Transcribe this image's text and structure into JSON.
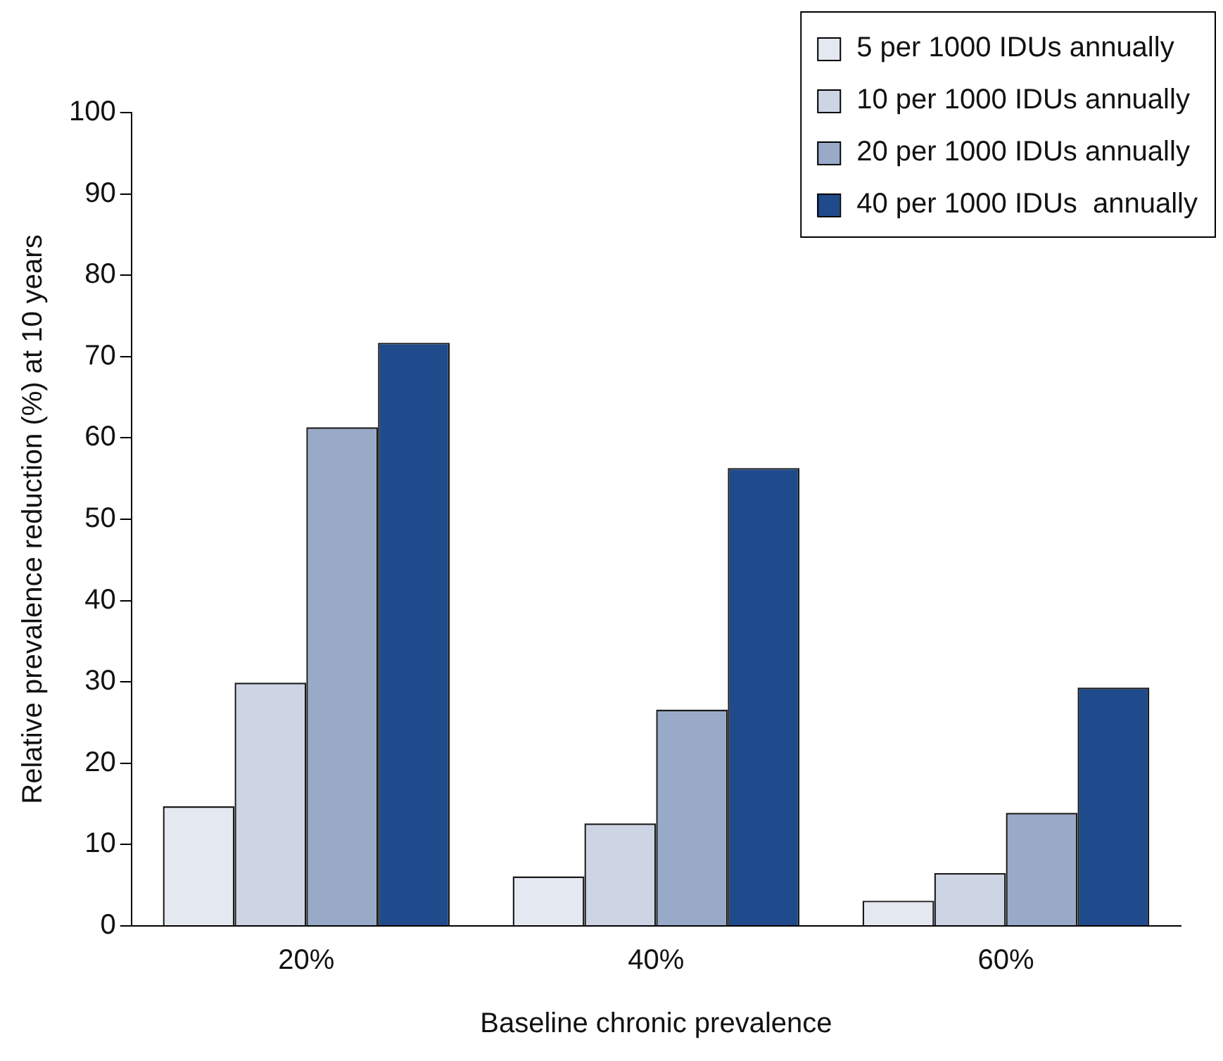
{
  "chart_data": {
    "type": "bar",
    "xlabel": "Baseline chronic prevalence",
    "ylabel": "Relative prevalence reduction (%) at 10 years",
    "categories": [
      "20%",
      "40%",
      "60%"
    ],
    "series": [
      {
        "name": "5 per 1000 IDUs annually",
        "color": "#e4e8f0",
        "values": [
          14.7,
          6.1,
          3.1
        ]
      },
      {
        "name": "10 per 1000 IDUs annually",
        "color": "#cdd5e4",
        "values": [
          29.9,
          12.6,
          6.5
        ]
      },
      {
        "name": "20 per 1000 IDUs annually",
        "color": "#98aac8",
        "values": [
          61.3,
          26.6,
          13.9
        ]
      },
      {
        "name": "40 per 1000 IDUs  annually",
        "color": "#1f4a8c",
        "values": [
          71.7,
          56.3,
          29.3
        ]
      }
    ],
    "ylim": [
      0,
      100
    ],
    "yticks": [
      0,
      10,
      20,
      30,
      40,
      50,
      60,
      70,
      80,
      90,
      100
    ],
    "grid": false,
    "legend": "top right"
  }
}
